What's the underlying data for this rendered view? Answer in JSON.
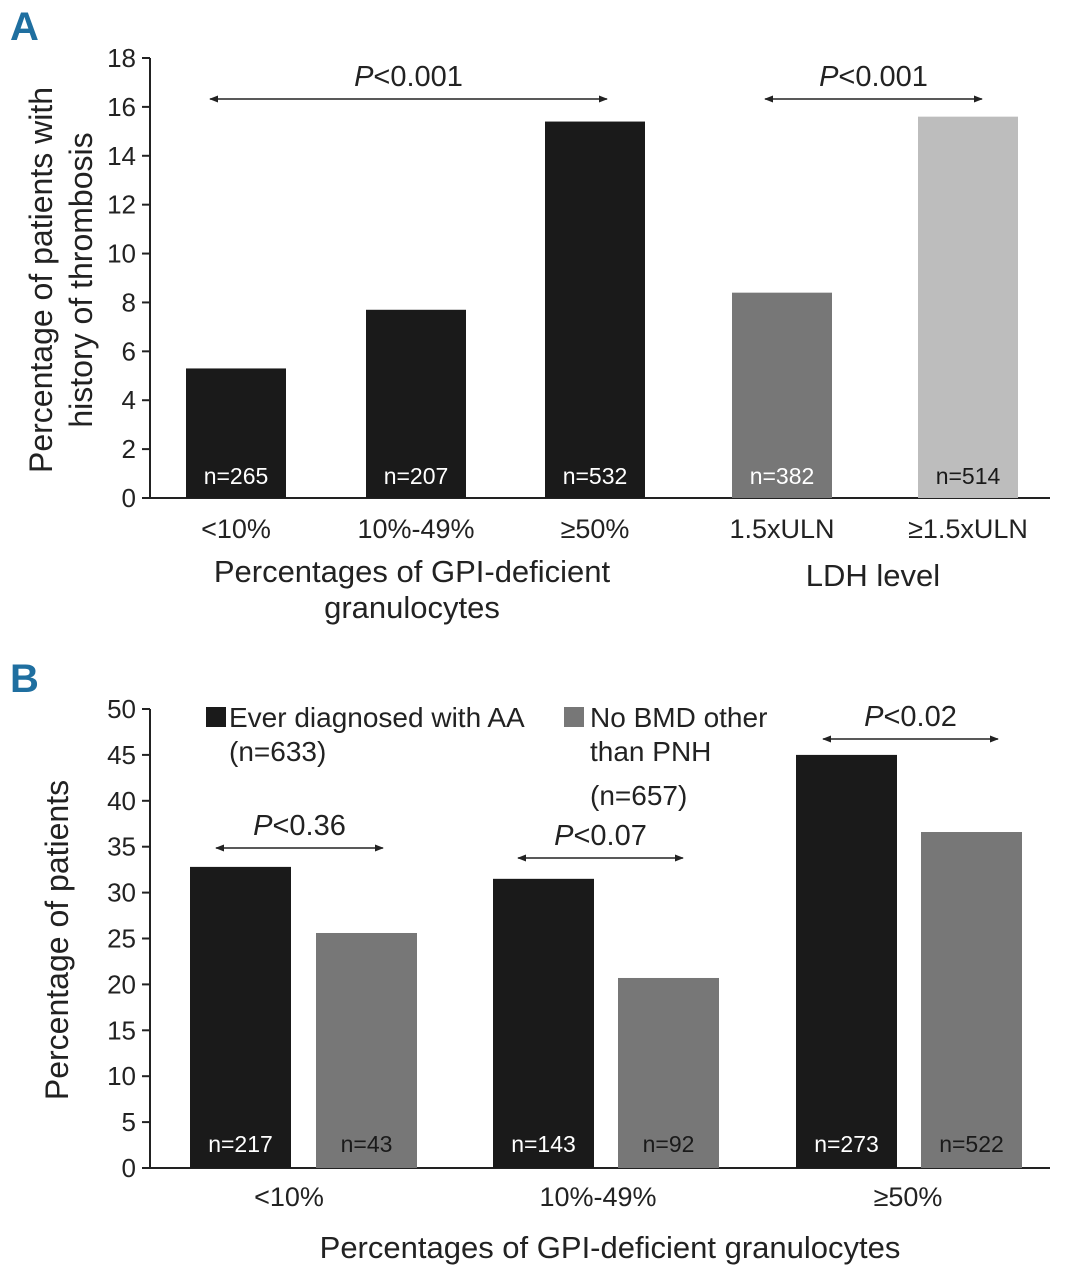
{
  "colors": {
    "black_bar": "#1a1a1a",
    "mid_gray_bar": "#777777",
    "light_gray_bar": "#bdbdbd",
    "axis": "#222222",
    "panel_letter": "#1f6fa0"
  },
  "chart_data": [
    {
      "panel": "A",
      "type": "bar",
      "ylabel_line1": "Percentage of patients with",
      "ylabel_line2": "history of thrombosis",
      "ylim": [
        0,
        18
      ],
      "yticks": [
        0,
        2,
        4,
        6,
        8,
        10,
        12,
        14,
        16,
        18
      ],
      "categories": [
        "<10%",
        "10%-49%",
        "≥50%",
        "1.5xULN",
        "≥1.5xULN"
      ],
      "values": [
        5.3,
        7.7,
        15.4,
        8.4,
        15.6
      ],
      "n_labels": [
        "n=265",
        "n=207",
        "n=532",
        "n=382",
        "n=514"
      ],
      "bar_colors": [
        "black",
        "black",
        "black",
        "mid_gray",
        "light_gray"
      ],
      "group_labels": [
        {
          "line1": "Percentages of GPI-deficient",
          "line2": "granulocytes",
          "categories": [
            0,
            1,
            2
          ]
        },
        {
          "line1": "LDH level",
          "line2": "",
          "categories": [
            3,
            4
          ]
        }
      ],
      "annotations": [
        {
          "p_letter": "P",
          "p_rest": "<0.001",
          "from": 0,
          "to": 2
        },
        {
          "p_letter": "P",
          "p_rest": "<0.001",
          "from": 3,
          "to": 4
        }
      ]
    },
    {
      "panel": "B",
      "type": "bar",
      "ylabel": "Percentage of patients",
      "xlabel": "Percentages of GPI-deficient granulocytes",
      "ylim": [
        0,
        50
      ],
      "yticks": [
        0,
        5,
        10,
        15,
        20,
        25,
        30,
        35,
        40,
        45,
        50
      ],
      "categories": [
        "<10%",
        "10%-49%",
        "≥50%"
      ],
      "series": [
        {
          "name_line1": "Ever diagnosed with AA",
          "name_line2": "(n=633)",
          "name_line3": "",
          "color": "black",
          "values": [
            32.8,
            31.5,
            45.0
          ],
          "n_labels": [
            "n=217",
            "n=143",
            "n=273"
          ]
        },
        {
          "name_line1": "No BMD other",
          "name_line2": "than PNH",
          "name_line3": "(n=657)",
          "color": "mid_gray",
          "values": [
            25.6,
            20.7,
            36.6
          ],
          "n_labels": [
            "n=43",
            "n=92",
            "n=522"
          ]
        }
      ],
      "annotations": [
        {
          "p_letter": "P",
          "p_rest": "<0.36",
          "category": 0
        },
        {
          "p_letter": "P",
          "p_rest": "<0.07",
          "category": 1
        },
        {
          "p_letter": "P",
          "p_rest": "<0.02",
          "category": 2
        }
      ]
    }
  ]
}
